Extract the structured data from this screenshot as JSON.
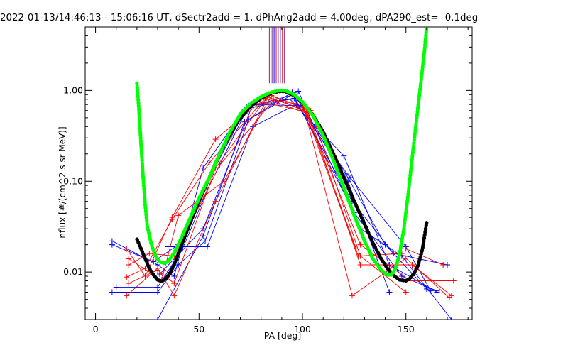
{
  "chart_data": {
    "type": "line",
    "title": "2022-01-13/14:46:13 - 15:06:16 UT, dSectr2add = 1, dPhAng2add = 4.00deg, dPA290_est=  -0.1deg",
    "xlabel": "PA [deg]",
    "ylabel": "nflux [#/(cm^2 s sr MeV)]",
    "xlim": [
      -5,
      182
    ],
    "ylim": [
      0.003,
      5.0
    ],
    "yscale": "log",
    "xticks": [
      0,
      50,
      100,
      150
    ],
    "xtick_labels": [
      "0",
      "50",
      "100",
      "150"
    ],
    "yticks": [
      0.01,
      0.1,
      1.0
    ],
    "ytick_labels": [
      "0.01",
      "0.10",
      "1.00"
    ],
    "colors": {
      "blue": "#0000ff",
      "red": "#ff0000",
      "black": "#000000",
      "green": "#00ff00",
      "purple": "#7a2c8c"
    },
    "vertical_markers": [
      84.0,
      85.3,
      86.3,
      87.3,
      88.3,
      89.3,
      90.3,
      91.3
    ],
    "vertical_marker_range": [
      1.2,
      5.0
    ],
    "series": [
      {
        "color": "blue",
        "points": [
          [
            8,
            0.022
          ],
          [
            30,
            0.012
          ],
          [
            38,
            0.009
          ],
          [
            52,
            0.14
          ],
          [
            72,
            0.62
          ],
          [
            94,
            0.8
          ],
          [
            120,
            0.19
          ],
          [
            142,
            0.012
          ],
          [
            165,
            0.006
          ]
        ]
      },
      {
        "color": "blue",
        "points": [
          [
            8,
            0.02
          ],
          [
            28,
            0.013
          ],
          [
            40,
            0.02
          ],
          [
            52,
            0.08
          ],
          [
            73,
            0.65
          ],
          [
            96,
            0.9
          ],
          [
            121,
            0.12
          ],
          [
            140,
            0.02
          ],
          [
            160,
            0.0065
          ]
        ]
      },
      {
        "color": "blue",
        "points": [
          [
            8,
            0.006
          ],
          [
            30,
            0.006
          ],
          [
            40,
            0.012
          ],
          [
            53,
            0.022
          ],
          [
            74,
            0.48
          ],
          [
            95,
            0.95
          ],
          [
            125,
            0.045
          ],
          [
            148,
            0.009
          ],
          [
            165,
            0.0062
          ]
        ]
      },
      {
        "color": "blue",
        "points": [
          [
            10,
            0.0068
          ],
          [
            30,
            0.0068
          ],
          [
            42,
            0.018
          ],
          [
            54,
            0.08
          ],
          [
            74,
            0.68
          ],
          [
            96,
            0.82
          ],
          [
            124,
            0.06
          ],
          [
            144,
            0.016
          ],
          [
            170,
            0.012
          ]
        ]
      },
      {
        "color": "blue",
        "points": [
          [
            30,
            0.003
          ],
          [
            52,
            0.025
          ],
          [
            72,
            0.45
          ],
          [
            98,
            0.98
          ],
          [
            128,
            0.03
          ],
          [
            148,
            0.015
          ],
          [
            172,
            0.003
          ]
        ]
      },
      {
        "color": "blue",
        "points": [
          [
            31,
            0.0095
          ],
          [
            52,
            0.03
          ],
          [
            76,
            0.7
          ],
          [
            99,
            0.68
          ],
          [
            122,
            0.1
          ],
          [
            142,
            0.006
          ]
        ]
      },
      {
        "color": "blue",
        "points": [
          [
            35,
            0.019
          ],
          [
            54,
            0.019
          ],
          [
            76,
            0.4
          ],
          [
            97,
            0.7
          ],
          [
            123,
            0.11
          ],
          [
            150,
            0.019
          ],
          [
            162,
            0.0062
          ]
        ]
      },
      {
        "color": "red",
        "points": [
          [
            15,
            0.018
          ],
          [
            24,
            0.009
          ],
          [
            37,
            0.04
          ],
          [
            58,
            0.29
          ],
          [
            80,
            0.75
          ],
          [
            102,
            0.58
          ],
          [
            128,
            0.02
          ],
          [
            152,
            0.008
          ],
          [
            173,
            0.008
          ]
        ]
      },
      {
        "color": "red",
        "points": [
          [
            15,
            0.0088
          ],
          [
            24,
            0.011
          ],
          [
            37,
            0.038
          ],
          [
            55,
            0.16
          ],
          [
            82,
            0.82
          ],
          [
            103,
            0.55
          ],
          [
            128,
            0.012
          ],
          [
            153,
            0.012
          ],
          [
            172,
            0.0055
          ]
        ]
      },
      {
        "color": "red",
        "points": [
          [
            16,
            0.0075
          ],
          [
            30,
            0.0105
          ],
          [
            38,
            0.0075
          ],
          [
            58,
            0.14
          ],
          [
            83,
            0.85
          ],
          [
            101,
            0.61
          ],
          [
            124,
            0.0055
          ],
          [
            150,
            0.0142
          ],
          [
            171,
            0.0052
          ]
        ]
      },
      {
        "color": "red",
        "points": [
          [
            15,
            0.0055
          ],
          [
            30,
            0.011
          ],
          [
            38,
            0.0055
          ],
          [
            58,
            0.06
          ],
          [
            84,
            0.9
          ],
          [
            102,
            0.57
          ],
          [
            126,
            0.018
          ],
          [
            150,
            0.018
          ],
          [
            168,
            0.012
          ]
        ]
      },
      {
        "color": "red",
        "points": [
          [
            16,
            0.012
          ],
          [
            26,
            0.016
          ],
          [
            38,
            0.015
          ],
          [
            60,
            0.15
          ],
          [
            86,
            0.78
          ],
          [
            100,
            0.7
          ],
          [
            127,
            0.015
          ],
          [
            148,
            0.016
          ]
        ]
      },
      {
        "color": "red",
        "points": [
          [
            16,
            0.014
          ],
          [
            32,
            0.0082
          ],
          [
            40,
            0.042
          ],
          [
            62,
            0.1
          ],
          [
            85,
            0.88
          ],
          [
            104,
            0.6
          ],
          [
            128,
            0.015
          ],
          [
            150,
            0.006
          ]
        ]
      }
    ],
    "fits": [
      {
        "color": "black",
        "points": [
          [
            20,
            0.023
          ],
          [
            22,
            0.018
          ],
          [
            24,
            0.014
          ],
          [
            26,
            0.011
          ],
          [
            28,
            0.0093
          ],
          [
            30,
            0.0082
          ],
          [
            32,
            0.0079
          ],
          [
            34,
            0.0085
          ],
          [
            36,
            0.0098
          ],
          [
            38,
            0.012
          ],
          [
            40,
            0.016
          ],
          [
            43,
            0.024
          ],
          [
            46,
            0.036
          ],
          [
            50,
            0.06
          ],
          [
            55,
            0.11
          ],
          [
            60,
            0.2
          ],
          [
            65,
            0.33
          ],
          [
            70,
            0.5
          ],
          [
            75,
            0.67
          ],
          [
            80,
            0.82
          ],
          [
            84,
            0.92
          ],
          [
            88,
            0.97
          ],
          [
            90,
            0.98
          ],
          [
            92,
            0.97
          ],
          [
            96,
            0.88
          ],
          [
            100,
            0.74
          ],
          [
            105,
            0.54
          ],
          [
            110,
            0.35
          ],
          [
            115,
            0.2
          ],
          [
            120,
            0.11
          ],
          [
            125,
            0.06
          ],
          [
            130,
            0.034
          ],
          [
            134,
            0.021
          ],
          [
            138,
            0.014
          ],
          [
            141,
            0.011
          ],
          [
            144,
            0.0092
          ],
          [
            147,
            0.0082
          ],
          [
            150,
            0.008
          ],
          [
            152,
            0.0085
          ],
          [
            154,
            0.0098
          ],
          [
            156,
            0.012
          ],
          [
            158,
            0.018
          ],
          [
            160,
            0.035
          ]
        ]
      },
      {
        "color": "green",
        "points": [
          [
            20,
            1.2
          ],
          [
            21,
            0.6
          ],
          [
            22,
            0.25
          ],
          [
            23,
            0.11
          ],
          [
            24,
            0.055
          ],
          [
            25,
            0.032
          ],
          [
            27,
            0.02
          ],
          [
            29,
            0.015
          ],
          [
            31,
            0.013
          ],
          [
            33,
            0.0125
          ],
          [
            35,
            0.013
          ],
          [
            37,
            0.015
          ],
          [
            40,
            0.02
          ],
          [
            44,
            0.032
          ],
          [
            50,
            0.065
          ],
          [
            55,
            0.11
          ],
          [
            60,
            0.2
          ],
          [
            65,
            0.35
          ],
          [
            70,
            0.55
          ],
          [
            75,
            0.72
          ],
          [
            80,
            0.85
          ],
          [
            84,
            0.94
          ],
          [
            88,
            0.99
          ],
          [
            90,
            1.0
          ],
          [
            92,
            0.99
          ],
          [
            96,
            0.9
          ],
          [
            100,
            0.75
          ],
          [
            105,
            0.53
          ],
          [
            110,
            0.32
          ],
          [
            115,
            0.17
          ],
          [
            120,
            0.085
          ],
          [
            125,
            0.042
          ],
          [
            130,
            0.022
          ],
          [
            134,
            0.014
          ],
          [
            138,
            0.0105
          ],
          [
            141,
            0.0093
          ],
          [
            143,
            0.0093
          ],
          [
            145,
            0.011
          ],
          [
            147,
            0.016
          ],
          [
            149,
            0.03
          ],
          [
            151,
            0.07
          ],
          [
            153,
            0.18
          ],
          [
            155,
            0.45
          ],
          [
            157,
            1.1
          ],
          [
            159,
            2.8
          ],
          [
            160,
            5.0
          ]
        ]
      }
    ]
  }
}
